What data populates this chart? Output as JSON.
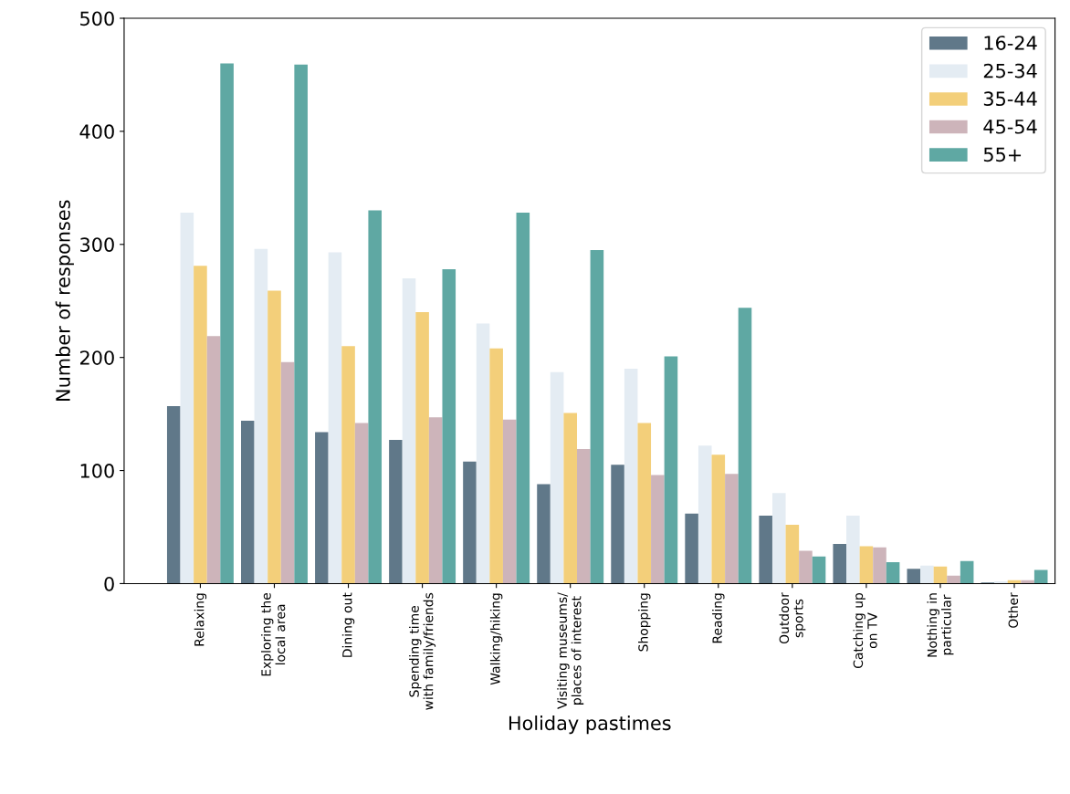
{
  "chart_data": {
    "type": "bar",
    "xlabel": "Holiday pastimes",
    "ylabel": "Number of responses",
    "categories": [
      "Relaxing",
      "Exploring the\nlocal area",
      "Dining out",
      "Spending time\nwith family/friends",
      "Walking/hiking",
      "Visiting museums/\nplaces of interest",
      "Shopping",
      "Reading",
      "Outdoor\nsports",
      "Catching up\non TV",
      "Nothing in\nparticular",
      "Other"
    ],
    "series": [
      {
        "name": "16-24",
        "color": "#607889",
        "values": [
          157,
          144,
          134,
          127,
          108,
          88,
          105,
          62,
          60,
          35,
          13,
          1
        ]
      },
      {
        "name": "25-34",
        "color": "#e4ecf3",
        "values": [
          328,
          296,
          293,
          270,
          230,
          187,
          190,
          122,
          80,
          60,
          16,
          2
        ]
      },
      {
        "name": "35-44",
        "color": "#f3cf7a",
        "values": [
          281,
          259,
          210,
          240,
          208,
          151,
          142,
          114,
          52,
          33,
          15,
          3
        ]
      },
      {
        "name": "45-54",
        "color": "#cdb4ba",
        "values": [
          219,
          196,
          142,
          147,
          145,
          119,
          96,
          97,
          29,
          32,
          7,
          3
        ]
      },
      {
        "name": "55+",
        "color": "#5fa8a3",
        "values": [
          460,
          459,
          330,
          278,
          328,
          295,
          201,
          244,
          24,
          19,
          20,
          12
        ]
      }
    ],
    "ylim": [
      0,
      500
    ],
    "yticks": [
      0,
      100,
      200,
      300,
      400,
      500
    ],
    "grid": false,
    "legend": "top right"
  }
}
